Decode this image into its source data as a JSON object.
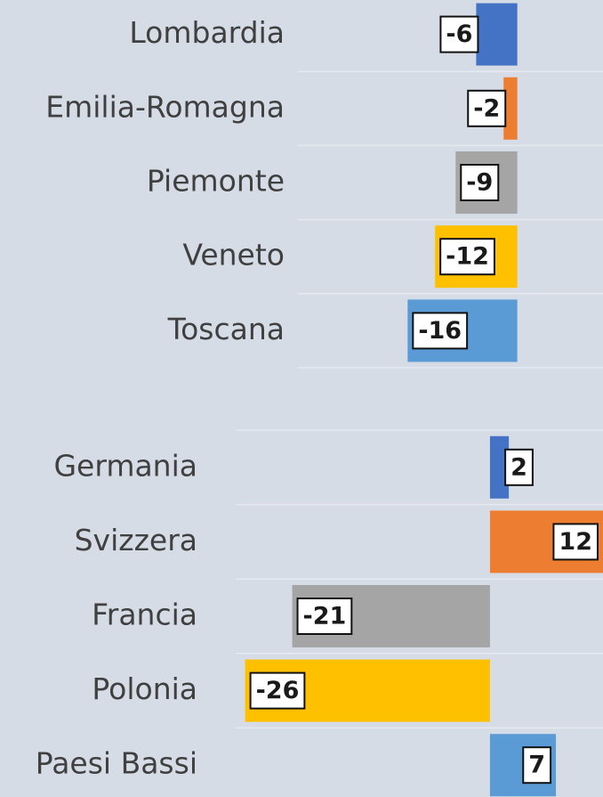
{
  "chart_data": [
    {
      "type": "bar",
      "orientation": "horizontal",
      "categories": [
        "Lombardia",
        "Emilia-Romagna",
        "Piemonte",
        "Veneto",
        "Toscana"
      ],
      "values": [
        -6,
        -2,
        -9,
        -12,
        -16
      ],
      "colors": [
        "#4472c4",
        "#ed7d31",
        "#a5a5a5",
        "#ffc000",
        "#5b9bd5"
      ],
      "xlim": [
        -32,
        12.5
      ]
    },
    {
      "type": "bar",
      "orientation": "horizontal",
      "categories": [
        "Germania",
        "Svizzera",
        "Francia",
        "Polonia",
        "Paesi Bassi"
      ],
      "values": [
        2,
        12,
        -21,
        -26,
        7
      ],
      "colors": [
        "#4472c4",
        "#ed7d31",
        "#a5a5a5",
        "#ffc000",
        "#5b9bd5"
      ],
      "xlim": [
        -27,
        12
      ]
    }
  ]
}
